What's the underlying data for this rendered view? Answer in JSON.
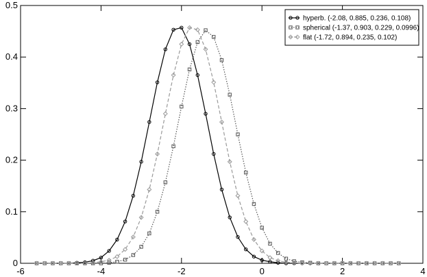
{
  "chart_data": {
    "type": "line",
    "x": [
      -5.6,
      -5.4,
      -5.2,
      -5.0,
      -4.8,
      -4.6,
      -4.4,
      -4.2,
      -4.0,
      -3.8,
      -3.6,
      -3.4,
      -3.2,
      -3.0,
      -2.8,
      -2.6,
      -2.4,
      -2.2,
      -2.0,
      -1.8,
      -1.6,
      -1.4,
      -1.2,
      -1.0,
      -0.8,
      -0.6,
      -0.4,
      -0.2,
      0.0,
      0.2,
      0.4,
      0.6,
      0.8,
      1.0,
      1.2,
      1.4,
      1.6,
      1.8,
      2.0,
      2.2,
      2.4,
      2.6,
      2.8,
      3.0,
      3.2,
      3.4
    ],
    "series": [
      {
        "name": "hyperb. (-2.08, 0.885, 0.236, 0.108)",
        "color": "#000000",
        "marker": "circle",
        "dash": "none",
        "values": [
          0,
          0,
          0,
          0,
          0,
          0.001,
          0.002,
          0.005,
          0.011,
          0.024,
          0.046,
          0.081,
          0.131,
          0.197,
          0.274,
          0.351,
          0.415,
          0.453,
          0.457,
          0.425,
          0.365,
          0.29,
          0.212,
          0.143,
          0.089,
          0.051,
          0.027,
          0.013,
          0.006,
          0.003,
          0.001,
          0,
          0,
          0,
          0,
          0,
          0,
          0,
          0,
          0,
          0,
          0,
          0,
          0,
          0,
          0
        ]
      },
      {
        "name": "spherical (-1.37, 0.903, 0.229, 0.0996)",
        "color": "#555555",
        "marker": "square",
        "dash": "1.5 2",
        "values": [
          0,
          0,
          0,
          0,
          0,
          0,
          0,
          0,
          0,
          0.001,
          0.003,
          0.007,
          0.016,
          0.032,
          0.058,
          0.1,
          0.157,
          0.227,
          0.304,
          0.376,
          0.429,
          0.452,
          0.439,
          0.394,
          0.327,
          0.25,
          0.176,
          0.115,
          0.069,
          0.038,
          0.02,
          0.009,
          0.004,
          0.002,
          0.001,
          0,
          0,
          0,
          0,
          0,
          0,
          0,
          0,
          0,
          0,
          0
        ]
      },
      {
        "name": "flat (-1.72, 0.894, 0.235, 0.102)",
        "color": "#999999",
        "marker": "diamond",
        "dash": "5 3",
        "values": [
          0,
          0,
          0,
          0,
          0,
          0,
          0,
          0.001,
          0.003,
          0.006,
          0.013,
          0.027,
          0.051,
          0.089,
          0.143,
          0.212,
          0.29,
          0.365,
          0.425,
          0.457,
          0.453,
          0.415,
          0.351,
          0.274,
          0.197,
          0.131,
          0.081,
          0.046,
          0.024,
          0.011,
          0.005,
          0.002,
          0.001,
          0,
          0,
          0,
          0,
          0,
          0,
          0,
          0,
          0,
          0,
          0,
          0,
          0
        ]
      }
    ],
    "xlim": [
      -6,
      4
    ],
    "xticks": [
      -6,
      -4,
      -2,
      0,
      2,
      4
    ],
    "ylim": [
      0,
      0.5
    ],
    "yticks": [
      0,
      0.1,
      0.2,
      0.3,
      0.4,
      0.5
    ],
    "legend": "upper right"
  }
}
